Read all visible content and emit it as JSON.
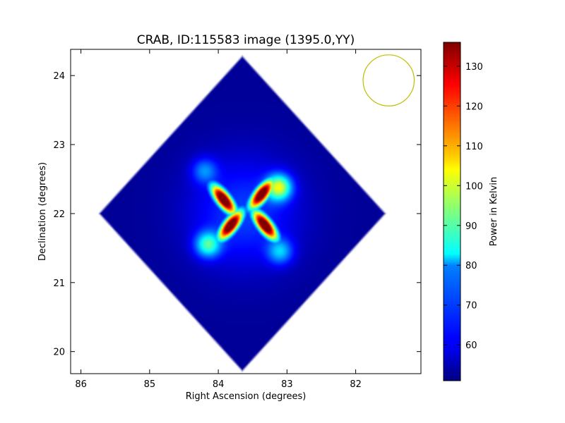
{
  "chart_data": {
    "type": "heatmap",
    "title": "CRAB, ID:115583 image (1395.0,YY)",
    "xlabel": "Right Ascension (degrees)",
    "ylabel": "Declination (degrees)",
    "xlim": [
      86.15,
      81.05
    ],
    "ylim": [
      19.68,
      24.38
    ],
    "x_ticks": [
      86,
      85,
      84,
      83,
      82
    ],
    "y_ticks": [
      20,
      21,
      22,
      23,
      24
    ],
    "x_tick_labels": [
      "86",
      "85",
      "84",
      "83",
      "82"
    ],
    "y_tick_labels": [
      "20",
      "21",
      "22",
      "23",
      "24"
    ],
    "colorbar": {
      "label": "Power in Kelvin",
      "range": [
        51,
        136
      ],
      "ticks": [
        60,
        70,
        80,
        90,
        100,
        110,
        120,
        130
      ],
      "tick_labels": [
        "60",
        "70",
        "80",
        "90",
        "100",
        "110",
        "120",
        "130"
      ],
      "colormap": "jet"
    },
    "map_footprint": {
      "shape": "diamond",
      "center": [
        83.65,
        22.0
      ],
      "ra_half_extent": 2.1,
      "dec_half_extent": 2.3,
      "background_level": 53
    },
    "source": {
      "ra": 83.63,
      "dec": 22.01,
      "peak_lobes": [
        {
          "ra": 83.92,
          "dec": 22.2,
          "value": 134
        },
        {
          "ra": 83.37,
          "dec": 22.28,
          "value": 132
        },
        {
          "ra": 83.82,
          "dec": 21.83,
          "value": 133
        },
        {
          "ra": 83.32,
          "dec": 21.83,
          "value": 134
        }
      ],
      "extended_arms": [
        {
          "ra": 83.12,
          "dec": 22.38,
          "value": 112
        },
        {
          "ra": 84.15,
          "dec": 21.55,
          "value": 100
        },
        {
          "ra": 84.2,
          "dec": 22.62,
          "value": 85
        },
        {
          "ra": 83.1,
          "dec": 21.45,
          "value": 90
        }
      ]
    },
    "beam": {
      "center": [
        81.52,
        23.93
      ],
      "radius_deg": 0.37,
      "color": "#bfbf00"
    },
    "colors": {
      "axis": "#000000",
      "outside_map": "#ffffff"
    }
  }
}
